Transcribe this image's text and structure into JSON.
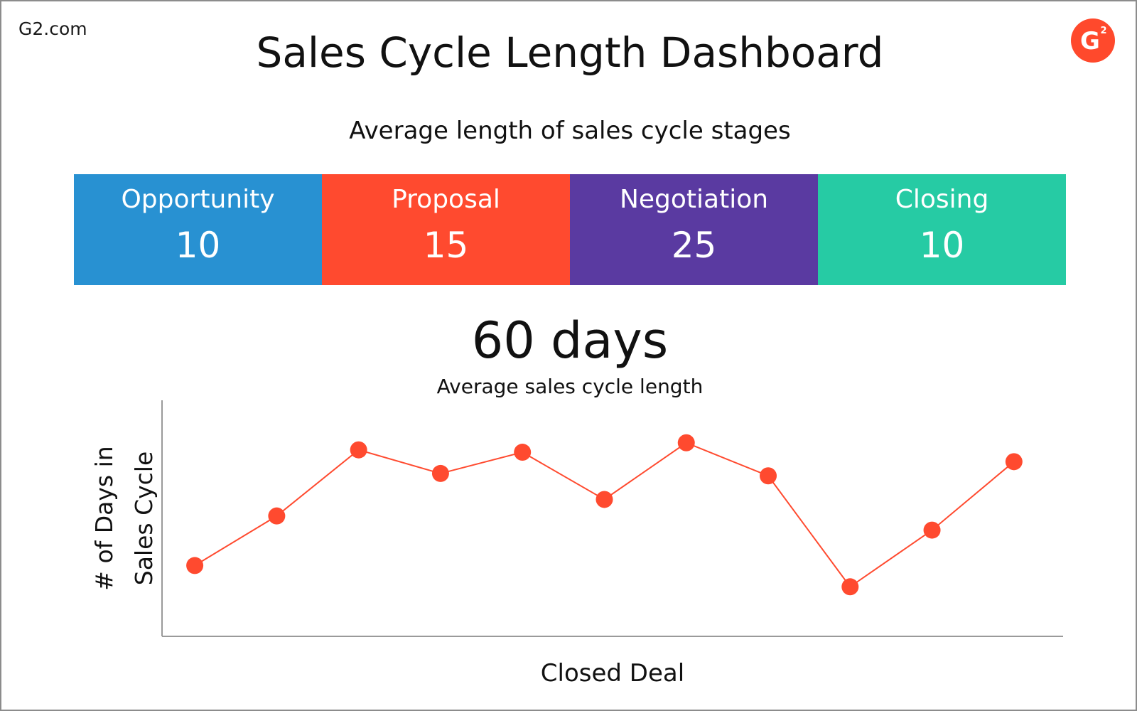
{
  "brand": {
    "name": "G2.com",
    "logo_icon": "g2-logo-icon",
    "logo_mark": "G",
    "logo_superscript": "2",
    "logo_color": "#ff492c"
  },
  "title": "Sales Cycle Length Dashboard",
  "stages_section": {
    "title": "Average length of sales cycle stages",
    "stages": [
      {
        "label": "Opportunity",
        "value": "10",
        "color": "#2891d2"
      },
      {
        "label": "Proposal",
        "value": "15",
        "color": "#ff4a2f"
      },
      {
        "label": "Negotiation",
        "value": "25",
        "color": "#5a3aa1"
      },
      {
        "label": "Closing",
        "value": "10",
        "color": "#26cba4"
      }
    ]
  },
  "summary": {
    "value": "60 days",
    "caption": "Average sales cycle length"
  },
  "chart_data": {
    "type": "line",
    "title": "",
    "xlabel": "Closed Deal",
    "ylabel": "# of Days in Sales Cycle",
    "ylabel_lines": [
      "# of Days in",
      "Sales Cycle"
    ],
    "x": [
      1,
      2,
      3,
      4,
      5,
      6,
      7,
      8,
      9,
      10,
      11
    ],
    "series": [
      {
        "values": [
          10,
          31,
          59,
          49,
          58,
          38,
          62,
          48,
          1,
          25,
          54
        ]
      }
    ],
    "ylim": [
      -20,
      80
    ],
    "xlim": [
      0.6,
      11.6
    ],
    "color": "#ff4a2f",
    "grid": false,
    "ticks_visible": false
  }
}
